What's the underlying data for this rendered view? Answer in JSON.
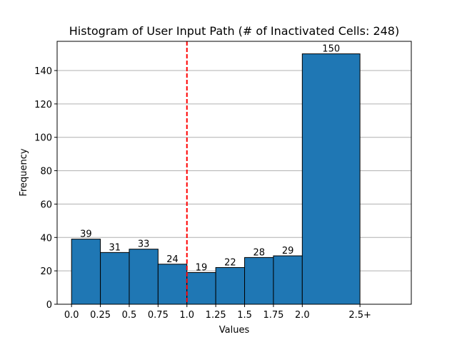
{
  "chart_data": {
    "type": "bar",
    "title": "Histogram of User Input Path (# of Inactivated Cells: 248)",
    "xlabel": "Values",
    "ylabel": "Frequency",
    "bin_edges": [
      0.0,
      0.25,
      0.5,
      0.75,
      1.0,
      1.25,
      1.5,
      1.75,
      2.0,
      2.5
    ],
    "x_tick_values": [
      0.0,
      0.25,
      0.5,
      0.75,
      1.0,
      1.25,
      1.5,
      1.75,
      2.0,
      2.5
    ],
    "x_tick_labels": [
      "0.0",
      "0.25",
      "0.5",
      "0.75",
      "1.0",
      "1.25",
      "1.5",
      "1.75",
      "2.0",
      "2.5+"
    ],
    "values": [
      39,
      31,
      33,
      24,
      19,
      22,
      28,
      29,
      150
    ],
    "data_labels": [
      "39",
      "31",
      "33",
      "24",
      "19",
      "22",
      "28",
      "29",
      "150"
    ],
    "y_ticks": [
      0,
      20,
      40,
      60,
      80,
      100,
      120,
      140
    ],
    "xlim": [
      -0.125,
      2.945
    ],
    "ylim": [
      0,
      157.5
    ],
    "reference_line": {
      "x": 1.0,
      "style": "dashed",
      "color": "#ff0000"
    },
    "grid": "horizontal",
    "colors": {
      "bar_fill": "#1f77b4",
      "bar_edge": "#000000",
      "grid": "#b0b0b0"
    }
  }
}
